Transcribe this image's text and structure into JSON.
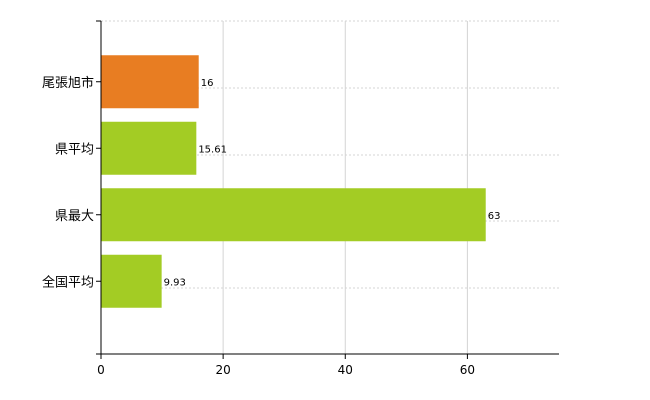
{
  "chart_data": {
    "type": "bar",
    "orientation": "horizontal",
    "categories": [
      "尾張旭市",
      "県平均",
      "県最大",
      "全国平均"
    ],
    "values": [
      16,
      15.61,
      63,
      9.93
    ],
    "value_labels": [
      "16",
      "15.61",
      "63",
      "9.93"
    ],
    "colors": [
      "#e87d22",
      "#a3cc24",
      "#a3cc24",
      "#a3cc24"
    ],
    "xlim": [
      0,
      75
    ],
    "xticks": [
      0,
      20,
      40,
      60
    ],
    "xtick_labels": [
      "0",
      "20",
      "40",
      "60"
    ],
    "grid": true,
    "legend": "none"
  }
}
